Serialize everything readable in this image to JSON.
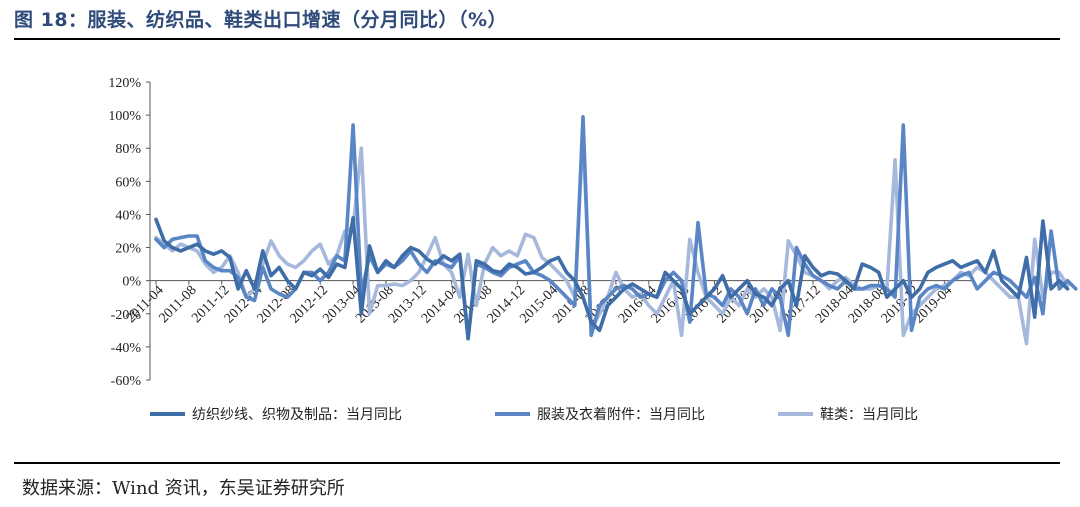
{
  "title": "图 18：服装、纺织品、鞋类出口增速（分月同比）（%）",
  "source": "数据来源：Wind 资讯，东吴证券研究所",
  "chart_data": {
    "type": "line",
    "y_ticks": [
      "120%",
      "100%",
      "80%",
      "60%",
      "40%",
      "20%",
      "0%",
      "-20%",
      "-40%",
      "-60%"
    ],
    "ylim": [
      -60,
      120
    ],
    "x_start": "2011-04",
    "x_end": "2019-07",
    "x_ticks": [
      "2011-04",
      "2011-08",
      "2011-12",
      "2012-04",
      "2012-08",
      "2012-12",
      "2013-04",
      "2013-08",
      "2013-12",
      "2014-04",
      "2014-08",
      "2014-12",
      "2015-04",
      "2015-08",
      "2015-12",
      "2016-04",
      "2016-08",
      "2016-12",
      "2017-04",
      "2017-08",
      "2017-12",
      "2018-04",
      "2018-08",
      "2018-12",
      "2019-04"
    ],
    "series": [
      {
        "name": "纺织纱线、织物及制品：当月同比",
        "color": "#3f6da8",
        "values": [
          37,
          24,
          20,
          18,
          20,
          22,
          18,
          16,
          18,
          14,
          -5,
          6,
          -5,
          18,
          3,
          8,
          0,
          -5,
          5,
          3,
          7,
          2,
          10,
          8,
          38,
          -20,
          21,
          5,
          12,
          8,
          15,
          20,
          18,
          13,
          10,
          15,
          12,
          16,
          -35,
          12,
          10,
          6,
          5,
          10,
          8,
          4,
          5,
          8,
          12,
          14,
          5,
          0,
          -10,
          -25,
          -30,
          -15,
          -10,
          -5,
          -2,
          -5,
          -8,
          -10,
          5,
          0,
          -5,
          -20,
          -15,
          -10,
          -5,
          3,
          -10,
          -5,
          0,
          -8,
          -10,
          -15,
          -5,
          0,
          -15,
          15,
          8,
          3,
          5,
          4,
          0,
          -5,
          10,
          8,
          5,
          -10,
          -5,
          0,
          -10,
          -5,
          5,
          8,
          10,
          12,
          8,
          10,
          12,
          5,
          18,
          0,
          -5,
          -10,
          14,
          -22,
          36,
          -5,
          0,
          -5
        ]
      },
      {
        "name": "服装及衣着附件：当月同比",
        "color": "#5a86c6",
        "values": [
          25,
          20,
          25,
          26,
          27,
          27,
          12,
          8,
          6,
          6,
          2,
          -10,
          -12,
          8,
          -5,
          -8,
          -10,
          -5,
          5,
          5,
          0,
          5,
          15,
          12,
          94,
          -8,
          15,
          5,
          10,
          8,
          12,
          18,
          10,
          5,
          12,
          10,
          8,
          15,
          -35,
          10,
          8,
          5,
          3,
          8,
          10,
          12,
          5,
          3,
          0,
          -5,
          -10,
          -15,
          99,
          -33,
          -15,
          -10,
          -5,
          -3,
          -5,
          -10,
          -8,
          -10,
          0,
          5,
          0,
          -25,
          35,
          -8,
          -10,
          -15,
          -5,
          -10,
          -20,
          -5,
          -15,
          -5,
          -10,
          -33,
          20,
          10,
          3,
          0,
          -3,
          -5,
          0,
          -5,
          -5,
          -3,
          -3,
          -5,
          -10,
          94,
          -30,
          -10,
          -5,
          -3,
          -5,
          0,
          3,
          5,
          -5,
          0,
          5,
          3,
          0,
          -5,
          -10,
          2,
          -20,
          30,
          -5,
          0,
          -5
        ]
      },
      {
        "name": "鞋类：当月同比",
        "color": "#a6b9dc",
        "values": [
          26,
          22,
          18,
          22,
          20,
          18,
          10,
          5,
          8,
          15,
          5,
          -10,
          -5,
          10,
          24,
          15,
          10,
          8,
          12,
          18,
          22,
          10,
          15,
          30,
          32,
          80,
          -20,
          -3,
          -3,
          -2,
          -3,
          0,
          5,
          15,
          26,
          10,
          5,
          -10,
          16,
          -15,
          10,
          20,
          15,
          18,
          15,
          28,
          26,
          14,
          10,
          5,
          0,
          -10,
          90,
          -30,
          -20,
          -10,
          5,
          -5,
          -10,
          -8,
          -15,
          -20,
          -10,
          0,
          -33,
          25,
          5,
          -10,
          -15,
          -20,
          -10,
          -15,
          -5,
          -10,
          -5,
          -10,
          -30,
          24,
          15,
          5,
          3,
          0,
          -5,
          0,
          2,
          -3,
          -5,
          -5,
          -3,
          -5,
          73,
          -33,
          -20,
          -15,
          -10,
          -5,
          -3,
          0,
          5,
          3,
          8,
          5,
          0,
          -5,
          -10,
          -10,
          -38,
          25,
          -10,
          5,
          5,
          -3
        ]
      }
    ]
  }
}
